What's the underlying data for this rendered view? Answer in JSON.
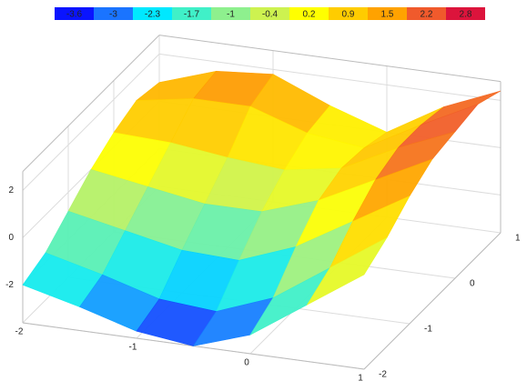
{
  "chart_data": {
    "type": "surface",
    "colorscale": {
      "values": [
        -3.6,
        -3,
        -2.3,
        -1.7,
        -1,
        -0.4,
        0.2,
        0.9,
        1.5,
        2.2,
        2.8
      ],
      "colors": [
        "#0a14ff",
        "#1a74ff",
        "#00e8ff",
        "#40f0c8",
        "#8ef08e",
        "#cdf250",
        "#ffff00",
        "#ffcc00",
        "#ffa200",
        "#f05a2c",
        "#dc143c"
      ]
    },
    "x": [
      -2,
      -1.5,
      -1,
      -0.5,
      0,
      0.5,
      1
    ],
    "y": [
      -2,
      -1.5,
      -1,
      -0.5,
      0,
      0.5,
      1
    ],
    "z": [
      [
        -2.0,
        -2.6,
        -3.3,
        -3.6,
        -2.8,
        -1.2,
        0.4
      ],
      [
        -1.6,
        -2.2,
        -2.9,
        -3.1,
        -2.2,
        -0.6,
        1.0
      ],
      [
        -0.8,
        -1.3,
        -1.8,
        -1.9,
        -1.0,
        0.4,
        1.8
      ],
      [
        0.0,
        -0.4,
        -0.8,
        -0.8,
        0.0,
        1.2,
        2.4
      ],
      [
        0.6,
        0.5,
        0.2,
        0.0,
        0.4,
        1.6,
        2.6
      ],
      [
        1.0,
        1.4,
        1.4,
        0.6,
        0.3,
        1.6,
        2.8
      ],
      [
        0.8,
        1.6,
        1.8,
        0.8,
        0.0,
        1.4,
        2.4
      ]
    ],
    "xlim": [
      -2,
      1
    ],
    "ylim": [
      -2,
      1
    ],
    "zlim": [
      -3.6,
      2.8
    ],
    "xticks": [
      -2,
      -1,
      0,
      1
    ],
    "yticks": [
      -2,
      -1,
      0,
      1
    ],
    "zticks": [
      -2,
      0,
      2
    ],
    "grid": true
  }
}
